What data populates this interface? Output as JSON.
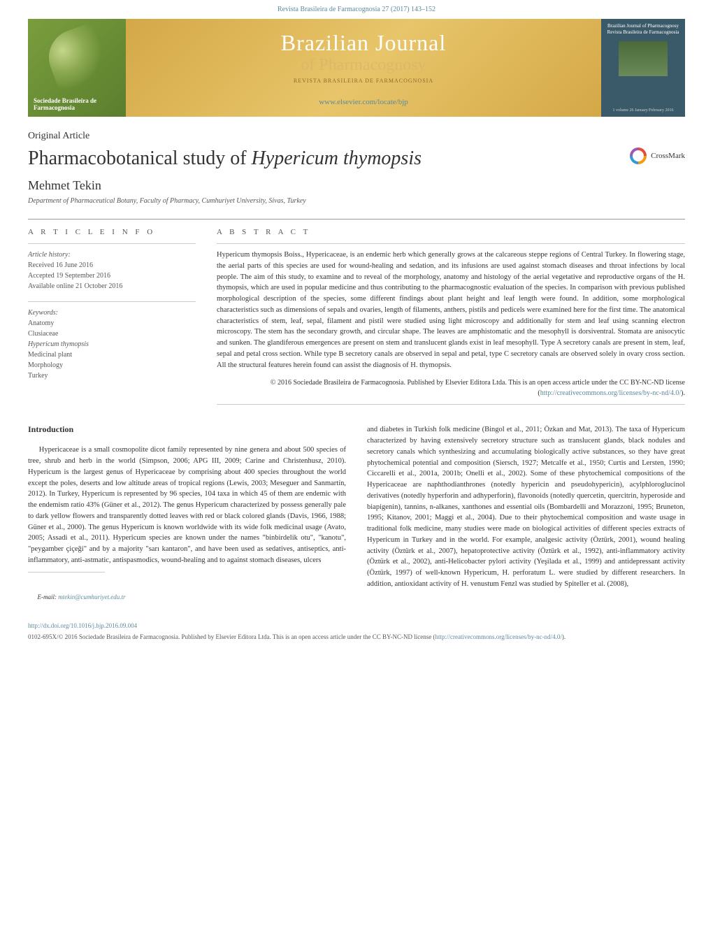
{
  "header": {
    "citation": "Revista Brasileira de Farmacognosia 27 (2017) 143–152",
    "banner_left_text": "Sociedade Brasileira de Farmacognosia",
    "banner_title": "Brazilian Journal",
    "banner_subtitle": "of Pharmacognosy",
    "banner_tagline": "REVISTA BRASILEIRA DE FARMACOGNOSIA",
    "banner_url": "www.elsevier.com/locate/bjp",
    "banner_right_top": "Brazilian Journal of Pharmacognosy",
    "banner_right_sub": "Revista Brasileira de Farmacognosia",
    "banner_right_bottom": "1 volume 26 January/February 2016"
  },
  "article": {
    "type": "Original Article",
    "title_prefix": "Pharmacobotanical study of ",
    "title_italic": "Hypericum thymopsis",
    "crossmark_label": "CrossMark",
    "author": "Mehmet Tekin",
    "affiliation": "Department of Pharmaceutical Botany, Faculty of Pharmacy, Cumhuriyet University, Sivas, Turkey"
  },
  "info": {
    "heading": "A R T I C L E   I N F O",
    "history_label": "Article history:",
    "received": "Received 16 June 2016",
    "accepted": "Accepted 19 September 2016",
    "available": "Available online 21 October 2016",
    "keywords_label": "Keywords:",
    "kw1": "Anatomy",
    "kw2": "Clusiaceae",
    "kw3": "Hypericum thymopsis",
    "kw4": "Medicinal plant",
    "kw5": "Morphology",
    "kw6": "Turkey"
  },
  "abstract": {
    "heading": "A B S T R A C T",
    "text": "Hypericum thymopsis Boiss., Hypericaceae, is an endemic herb which generally grows at the calcareous steppe regions of Central Turkey. In flowering stage, the aerial parts of this species are used for wound-healing and sedation, and its infusions are used against stomach diseases and throat infections by local people. The aim of this study, to examine and to reveal of the morphology, anatomy and histology of the aerial vegetative and reproductive organs of the H. thymopsis, which are used in popular medicine and thus contributing to the pharmacognostic evaluation of the species. In comparison with previous published morphological description of the species, some different findings about plant height and leaf length were found. In addition, some morphological characteristics such as dimensions of sepals and ovaries, length of filaments, anthers, pistils and pedicels were examined here for the first time. The anatomical characteristics of stem, leaf, sepal, filament and pistil were studied using light microscopy and additionally for stem and leaf using scanning electron microscopy. The stem has the secondary growth, and circular shape. The leaves are amphistomatic and the mesophyll is dorsiventral. Stomata are anisocytic and sunken. The glandiferous emergences are present on stem and translucent glands exist in leaf mesophyll. Type A secretory canals are present in stem, leaf, sepal and petal cross section. While type B secretory canals are observed in sepal and petal, type C secretory canals are observed solely in ovary cross section. All the structural features herein found can assist the diagnosis of H. thymopsis.",
    "copyright": "© 2016 Sociedade Brasileira de Farmacognosia. Published by Elsevier Editora Ltda. This is an open access article under the CC BY-NC-ND license (",
    "copyright_link": "http://creativecommons.org/licenses/by-nc-nd/4.0/",
    "copyright_end": ")."
  },
  "body": {
    "intro_heading": "Introduction",
    "left_para": "Hypericaceae is a small cosmopolite dicot family represented by nine genera and about 500 species of tree, shrub and herb in the world (Simpson, 2006; APG III, 2009; Carine and Christenhusz, 2010). Hypericum is the largest genus of Hypericaceae by comprising about 400 species throughout the world except the poles, deserts and low altitude areas of tropical regions (Lewis, 2003; Meseguer and Sanmartín, 2012). In Turkey, Hypericum is represented by 96 species, 104 taxa in which 45 of them are endemic with the endemism ratio 43% (Güner et al., 2012). The genus Hypericum characterized by possess generally pale to dark yellow flowers and transparently dotted leaves with red or black colored glands (Davis, 1966, 1988; Güner et al., 2000). The genus Hypericum is known worldwide with its wide folk medicinal usage (Avato, 2005; Assadi et al., 2011). Hypericum species are known under the names \"binbirdelik otu\", \"kanotu\", \"peygamber çiçeği\" and by a majority \"sarı kantaron\", and have been used as sedatives, antiseptics, anti-inflammatory, anti-astmatic, antispasmodics, wound-healing and to against stomach diseases, ulcers",
    "right_para": "and diabetes in Turkish folk medicine (Bingol et al., 2011; Özkan and Mat, 2013). The taxa of Hypericum characterized by having extensively secretory structure such as translucent glands, black nodules and secretory canals which synthesizing and accumulating biologically active substances, so they have great phytochemical potential and composition (Siersch, 1927; Metcalfe et al., 1950; Curtis and Lersten, 1990; Ciccarelli et al., 2001a, 2001b; Onelli et al., 2002). Some of these phytochemical compositions of the Hypericaceae are naphthodianthrones (notedly hypericin and pseudohypericin), acylphloroglucinol derivatives (notedly hyperforin and adhyperforin), flavonoids (notedly quercetin, quercitrin, hyperoside and biapigenin), tannins, n-alkanes, xanthones and essential oils (Bombardelli and Morazzoni, 1995; Bruneton, 1995; Kitanov, 2001; Maggi et al., 2004). Due to their phytochemical composition and waste usage in traditional folk medicine, many studies were made on biological activities of different species extracts of Hypericum in Turkey and in the world. For example, analgesic activity (Öztürk, 2001), wound healing activity (Öztürk et al., 2007), hepatoprotective activity (Öztürk et al., 1992), anti-inflammatory activity (Öztürk et al., 2002), anti-Helicobacter pylori activity (Yeşilada et al., 1999) and antidepressant activity (Öztürk, 1997) of well-known Hypericum, H. perforatum L. were studied by different researchers. In addition, antioxidant activity of H. venustum Fenzl was studied by Spiteller et al. (2008),"
  },
  "email": {
    "label": "E-mail: ",
    "address": "mtekin@cumhuriyet.edu.tr"
  },
  "footer": {
    "doi": "http://dx.doi.org/10.1016/j.bjp.2016.09.004",
    "license": "0102-695X/© 2016 Sociedade Brasileira de Farmacognosia. Published by Elsevier Editora Ltda. This is an open access article under the CC BY-NC-ND license (",
    "license_link": "http://creativecommons.org/licenses/by-nc-nd/4.0/",
    "license_end": ")."
  },
  "colors": {
    "link": "#5c8a9a",
    "banner_green": "#7a9e3d",
    "banner_gold": "#d4a847",
    "banner_right": "#3a5a6a"
  }
}
